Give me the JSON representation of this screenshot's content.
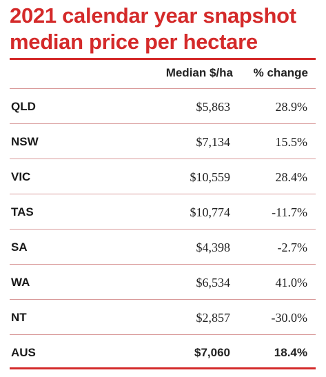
{
  "title_line1": "2021 calendar year snapshot",
  "title_line2": "median price per hectare",
  "chart_data": {
    "type": "table",
    "columns": [
      "Median $/ha",
      "% change"
    ],
    "rows": [
      {
        "state": "QLD",
        "median": "$5,863",
        "change": "28.9%"
      },
      {
        "state": "NSW",
        "median": "$7,134",
        "change": "15.5%"
      },
      {
        "state": "VIC",
        "median": "$10,559",
        "change": "28.4%"
      },
      {
        "state": "TAS",
        "median": "$10,774",
        "change": "-11.7%"
      },
      {
        "state": "SA",
        "median": "$4,398",
        "change": "-2.7%"
      },
      {
        "state": "WA",
        "median": "$6,534",
        "change": "41.0%"
      },
      {
        "state": "NT",
        "median": "$2,857",
        "change": "-30.0%"
      },
      {
        "state": "AUS",
        "median": "$7,060",
        "change": "18.4%",
        "total": true
      }
    ]
  },
  "colors": {
    "accent": "#d42a2a",
    "row_rule": "#d99a9a"
  }
}
